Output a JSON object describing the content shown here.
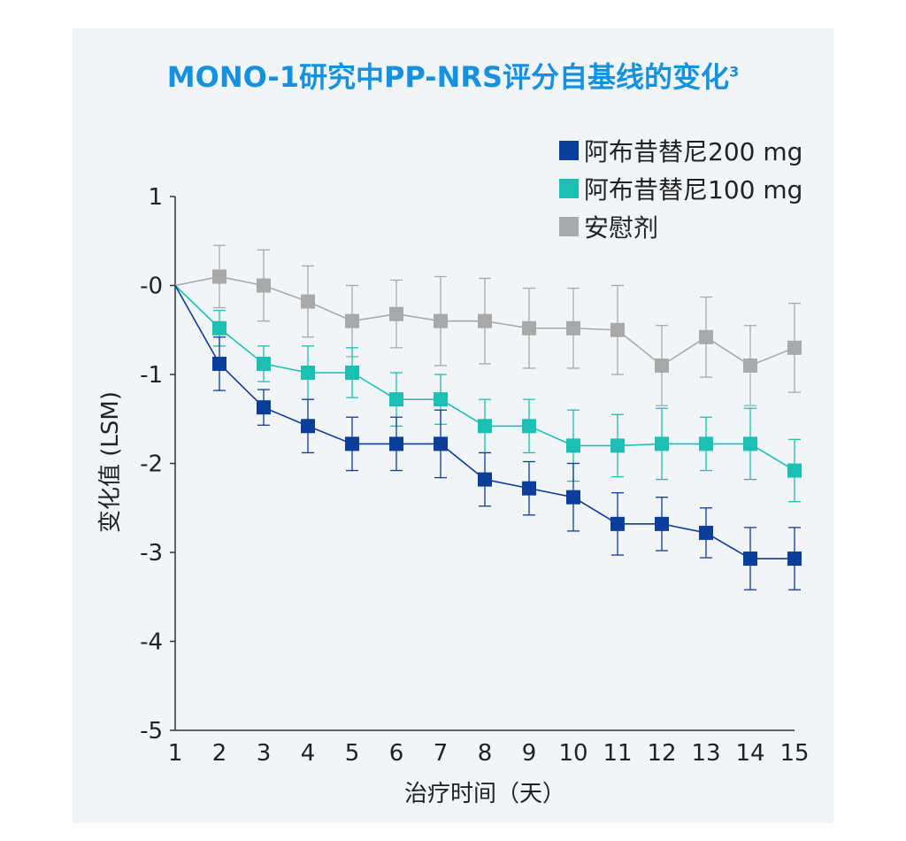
{
  "chart_data": {
    "type": "line",
    "title": "MONO-1研究中PP-NRS评分自基线的变化",
    "title_superscript": "3",
    "xlabel": "治疗时间（天）",
    "ylabel": "变化值 (LSM)",
    "x": [
      1,
      2,
      3,
      4,
      5,
      6,
      7,
      8,
      9,
      10,
      11,
      12,
      13,
      14,
      15
    ],
    "xlim": [
      1,
      15
    ],
    "ylim": [
      -5,
      1
    ],
    "yticks": [
      1,
      0,
      -1,
      -2,
      -3,
      -4,
      -5
    ],
    "ytick_labels": [
      "1",
      "-0",
      "-1",
      "-2",
      "-3",
      "-4",
      "-5"
    ],
    "grid": false,
    "legend_position": "top-right",
    "series": [
      {
        "name": "阿布昔替尼200 mg",
        "color": "#0a3d9c",
        "values": [
          0,
          -0.88,
          -1.37,
          -1.58,
          -1.78,
          -1.78,
          -1.78,
          -2.18,
          -2.28,
          -2.38,
          -2.68,
          -2.68,
          -2.78,
          -3.07,
          -3.07
        ],
        "error": [
          0,
          0.3,
          0.2,
          0.3,
          0.3,
          0.3,
          0.38,
          0.3,
          0.3,
          0.38,
          0.35,
          0.3,
          0.28,
          0.35,
          0.35
        ]
      },
      {
        "name": "阿布昔替尼100 mg",
        "color": "#1cbfb4",
        "values": [
          0,
          -0.48,
          -0.88,
          -0.98,
          -0.98,
          -1.28,
          -1.28,
          -1.58,
          -1.58,
          -1.8,
          -1.8,
          -1.78,
          -1.78,
          -1.78,
          -2.08
        ],
        "error": [
          0,
          0.2,
          0.2,
          0.3,
          0.28,
          0.3,
          0.28,
          0.3,
          0.3,
          0.4,
          0.35,
          0.4,
          0.3,
          0.4,
          0.35
        ]
      },
      {
        "name": "安慰剂",
        "color": "#a9a9a9",
        "values": [
          0,
          0.1,
          0.0,
          -0.18,
          -0.4,
          -0.32,
          -0.4,
          -0.4,
          -0.48,
          -0.48,
          -0.5,
          -0.9,
          -0.58,
          -0.9,
          -0.7
        ],
        "error": [
          0,
          0.35,
          0.4,
          0.4,
          0.4,
          0.38,
          0.5,
          0.48,
          0.45,
          0.45,
          0.5,
          0.45,
          0.45,
          0.45,
          0.5
        ]
      }
    ]
  }
}
